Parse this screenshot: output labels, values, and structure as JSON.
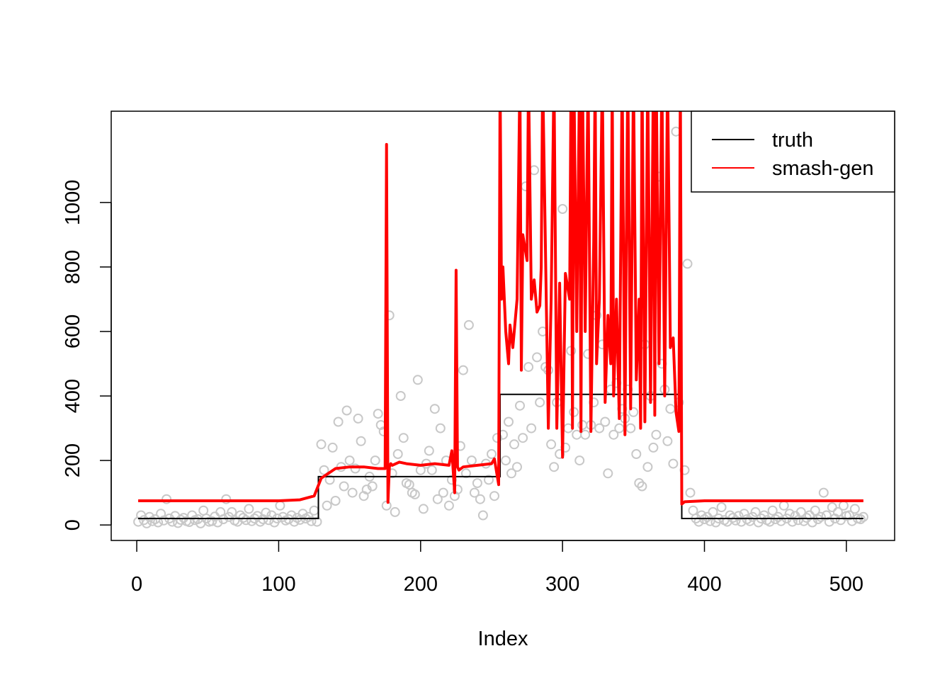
{
  "chart_data": {
    "type": "line",
    "title": "",
    "xlabel": "Index",
    "ylabel": "",
    "xlim": [
      -18,
      534
    ],
    "ylim": [
      -48,
      1283
    ],
    "x_ticks": [
      0,
      100,
      200,
      300,
      400,
      500
    ],
    "y_ticks": [
      0,
      200,
      400,
      600,
      800,
      1000
    ],
    "grid": false,
    "legend_position": "top-right",
    "colors": {
      "truth": "#000000",
      "smash_gen": "#ff0000",
      "observations": "#c8c8c8"
    },
    "series": [
      {
        "name": "truth",
        "style": "step",
        "x": [
          1,
          128,
          128,
          256,
          256,
          384,
          384,
          512
        ],
        "y": [
          20,
          20,
          150,
          150,
          405,
          405,
          20,
          20
        ]
      },
      {
        "name": "smash-gen",
        "x": [
          1,
          100,
          115,
          125,
          130,
          140,
          150,
          160,
          170,
          175,
          176,
          177,
          178,
          179,
          180,
          185,
          190,
          200,
          210,
          220,
          222,
          224,
          225,
          226,
          227,
          230,
          240,
          250,
          252,
          255,
          256,
          257,
          258,
          260,
          262,
          263,
          265,
          268,
          270,
          271,
          272,
          275,
          276,
          278,
          280,
          282,
          284,
          285,
          286,
          290,
          292,
          294,
          296,
          298,
          300,
          302,
          305,
          306,
          307,
          308,
          310,
          312,
          313,
          314,
          316,
          318,
          320,
          322,
          323,
          324,
          326,
          328,
          330,
          332,
          334,
          335,
          336,
          338,
          340,
          342,
          344,
          345,
          346,
          348,
          350,
          352,
          354,
          355,
          356,
          358,
          360,
          362,
          364,
          365,
          366,
          368,
          370,
          372,
          374,
          376,
          378,
          380,
          382,
          383,
          384,
          386,
          400,
          450,
          512
        ],
        "y": [
          75,
          75,
          78,
          90,
          145,
          175,
          180,
          180,
          175,
          175,
          1180,
          70,
          180,
          190,
          185,
          195,
          190,
          185,
          190,
          185,
          230,
          100,
          790,
          180,
          170,
          180,
          185,
          190,
          205,
          125,
          1400,
          700,
          800,
          600,
          500,
          620,
          550,
          700,
          1400,
          480,
          900,
          820,
          1400,
          700,
          760,
          660,
          680,
          800,
          1400,
          300,
          700,
          1400,
          300,
          750,
          210,
          780,
          700,
          1400,
          300,
          1400,
          600,
          1400,
          290,
          1400,
          600,
          1400,
          290,
          880,
          1400,
          500,
          700,
          1400,
          380,
          650,
          500,
          1400,
          400,
          700,
          330,
          1400,
          280,
          900,
          1400,
          360,
          1400,
          450,
          700,
          300,
          1400,
          320,
          1400,
          380,
          1400,
          340,
          1400,
          500,
          1400,
          400,
          1400,
          550,
          580,
          350,
          290,
          1400,
          65,
          72,
          75,
          75,
          75
        ]
      }
    ],
    "observations": {
      "name": "",
      "x": [
        1,
        3,
        5,
        7,
        9,
        11,
        13,
        15,
        17,
        19,
        21,
        23,
        25,
        27,
        29,
        31,
        33,
        35,
        37,
        39,
        41,
        43,
        45,
        47,
        49,
        51,
        53,
        55,
        57,
        59,
        61,
        63,
        65,
        67,
        69,
        71,
        73,
        75,
        77,
        79,
        81,
        83,
        85,
        87,
        89,
        91,
        93,
        95,
        97,
        99,
        101,
        103,
        105,
        107,
        109,
        111,
        113,
        115,
        117,
        119,
        121,
        123,
        125,
        127,
        130,
        132,
        134,
        136,
        138,
        140,
        142,
        144,
        146,
        148,
        150,
        152,
        154,
        156,
        158,
        160,
        162,
        164,
        166,
        168,
        170,
        172,
        174,
        176,
        178,
        180,
        182,
        184,
        186,
        188,
        190,
        192,
        194,
        196,
        198,
        200,
        202,
        204,
        206,
        208,
        210,
        212,
        214,
        216,
        218,
        220,
        222,
        224,
        226,
        228,
        230,
        232,
        234,
        236,
        238,
        240,
        242,
        244,
        246,
        248,
        250,
        252,
        254,
        258,
        260,
        262,
        264,
        266,
        268,
        270,
        272,
        274,
        276,
        278,
        280,
        282,
        284,
        286,
        288,
        290,
        292,
        294,
        296,
        298,
        300,
        302,
        304,
        306,
        308,
        310,
        312,
        314,
        316,
        318,
        320,
        322,
        324,
        326,
        328,
        330,
        332,
        334,
        336,
        338,
        340,
        342,
        344,
        346,
        348,
        350,
        352,
        354,
        356,
        358,
        360,
        362,
        364,
        366,
        368,
        370,
        372,
        374,
        376,
        378,
        380,
        382,
        386,
        388,
        390,
        392,
        394,
        396,
        398,
        400,
        402,
        404,
        406,
        408,
        410,
        412,
        414,
        416,
        418,
        420,
        422,
        424,
        426,
        428,
        430,
        432,
        434,
        436,
        438,
        440,
        442,
        444,
        446,
        448,
        450,
        452,
        454,
        456,
        458,
        460,
        462,
        464,
        466,
        468,
        470,
        472,
        474,
        476,
        478,
        480,
        482,
        484,
        486,
        488,
        490,
        492,
        494,
        496,
        498,
        500,
        502,
        504,
        506,
        508,
        510,
        512
      ],
      "y": [
        10,
        30,
        15,
        5,
        25,
        12,
        18,
        8,
        35,
        14,
        80,
        20,
        10,
        28,
        6,
        16,
        22,
        12,
        9,
        30,
        15,
        18,
        5,
        45,
        20,
        10,
        12,
        26,
        8,
        40,
        18,
        80,
        25,
        40,
        14,
        10,
        30,
        22,
        15,
        50,
        12,
        20,
        28,
        10,
        18,
        38,
        15,
        30,
        8,
        20,
        60,
        25,
        14,
        18,
        30,
        10,
        22,
        16,
        35,
        20,
        25,
        12,
        45,
        10,
        250,
        170,
        60,
        140,
        240,
        75,
        320,
        180,
        120,
        355,
        200,
        100,
        175,
        330,
        260,
        90,
        110,
        150,
        120,
        200,
        345,
        310,
        290,
        60,
        650,
        160,
        40,
        220,
        400,
        270,
        130,
        125,
        100,
        95,
        450,
        170,
        50,
        190,
        230,
        170,
        360,
        80,
        300,
        100,
        200,
        60,
        140,
        90,
        110,
        245,
        480,
        160,
        620,
        200,
        100,
        130,
        80,
        30,
        190,
        140,
        220,
        90,
        270,
        280,
        200,
        320,
        160,
        250,
        180,
        370,
        270,
        1050,
        490,
        300,
        1100,
        520,
        380,
        600,
        490,
        480,
        250,
        180,
        380,
        220,
        980,
        240,
        300,
        540,
        350,
        280,
        200,
        310,
        280,
        530,
        310,
        380,
        650,
        300,
        560,
        320,
        160,
        420,
        280,
        440,
        300,
        360,
        330,
        420,
        300,
        350,
        220,
        130,
        120,
        560,
        180,
        400,
        240,
        280,
        1080,
        500,
        420,
        260,
        360,
        190,
        1220,
        380,
        170,
        810,
        100,
        45,
        20,
        10,
        30,
        18,
        25,
        12,
        40,
        8,
        20,
        55,
        15,
        10,
        30,
        22,
        14,
        28,
        10,
        35,
        18,
        12,
        25,
        40,
        8,
        20,
        30,
        15,
        10,
        45,
        18,
        25,
        12,
        60,
        20,
        35,
        10,
        28,
        15,
        40,
        12,
        22,
        30,
        8,
        45,
        18,
        25,
        100,
        30,
        10,
        55,
        20,
        40,
        15,
        60,
        28,
        30,
        12,
        50,
        20,
        18,
        25
      ]
    }
  }
}
